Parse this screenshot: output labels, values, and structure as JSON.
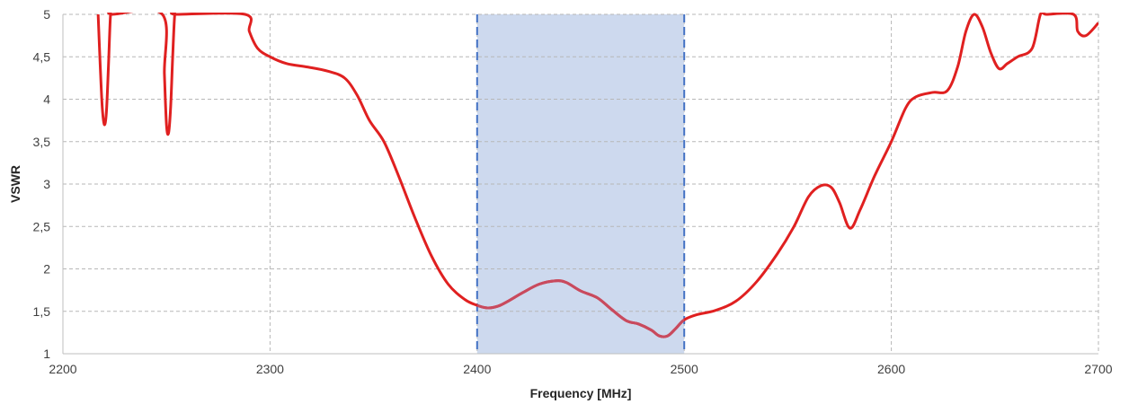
{
  "chart_data": {
    "type": "line",
    "title": "",
    "xlabel": "Frequency [MHz]",
    "ylabel": "VSWR",
    "xlim": [
      2200,
      2700
    ],
    "ylim": [
      1,
      5
    ],
    "x_ticks": [
      "2200",
      "2300",
      "2400",
      "2500",
      "2600",
      "2700"
    ],
    "y_ticks": [
      "1",
      "1,5",
      "2",
      "2,5",
      "3",
      "3,5",
      "4",
      "4,5",
      "5"
    ],
    "grid": true,
    "legend": "none",
    "highlight_band": {
      "x_start": 2400,
      "x_end": 2500,
      "fill": "#cdd9ee",
      "edge_color": "#4472c4"
    },
    "series": [
      {
        "color": "#e02020",
        "in_band_color": "#c84a5e",
        "x": [
          2217,
          2218,
          2219,
          2220,
          2221,
          2222,
          2223,
          2224,
          2248,
          2249,
          2250,
          2251,
          2252,
          2253,
          2254,
          2255,
          2288,
          2290,
          2294,
          2300,
          2308,
          2318,
          2328,
          2336,
          2342,
          2348,
          2355,
          2362,
          2370,
          2378,
          2386,
          2394,
          2400,
          2405,
          2410,
          2415,
          2422,
          2430,
          2438,
          2443,
          2450,
          2458,
          2465,
          2472,
          2478,
          2484,
          2488,
          2492,
          2496,
          2500,
          2506,
          2515,
          2525,
          2535,
          2545,
          2553,
          2560,
          2566,
          2571,
          2575,
          2580,
          2585,
          2592,
          2600,
          2607,
          2612,
          2620,
          2627,
          2632,
          2636,
          2640,
          2644,
          2648,
          2652,
          2656,
          2661,
          2668,
          2672,
          2675,
          2688,
          2690,
          2694,
          2700
        ],
        "y": [
          5.0,
          4.4,
          3.9,
          3.7,
          3.85,
          4.4,
          5.0,
          5.0,
          5.0,
          4.3,
          3.7,
          3.6,
          3.9,
          4.5,
          5.0,
          5.0,
          5.0,
          4.8,
          4.6,
          4.5,
          4.42,
          4.38,
          4.33,
          4.25,
          4.05,
          3.75,
          3.5,
          3.1,
          2.6,
          2.15,
          1.82,
          1.64,
          1.57,
          1.54,
          1.56,
          1.62,
          1.72,
          1.82,
          1.86,
          1.84,
          1.74,
          1.66,
          1.52,
          1.39,
          1.35,
          1.28,
          1.21,
          1.21,
          1.3,
          1.4,
          1.46,
          1.51,
          1.62,
          1.85,
          2.18,
          2.5,
          2.85,
          2.98,
          2.96,
          2.78,
          2.48,
          2.7,
          3.1,
          3.5,
          3.9,
          4.03,
          4.08,
          4.1,
          4.38,
          4.8,
          5.0,
          4.85,
          4.55,
          4.36,
          4.42,
          4.5,
          4.6,
          5.0,
          5.0,
          5.0,
          4.8,
          4.75,
          4.9
        ]
      }
    ]
  }
}
